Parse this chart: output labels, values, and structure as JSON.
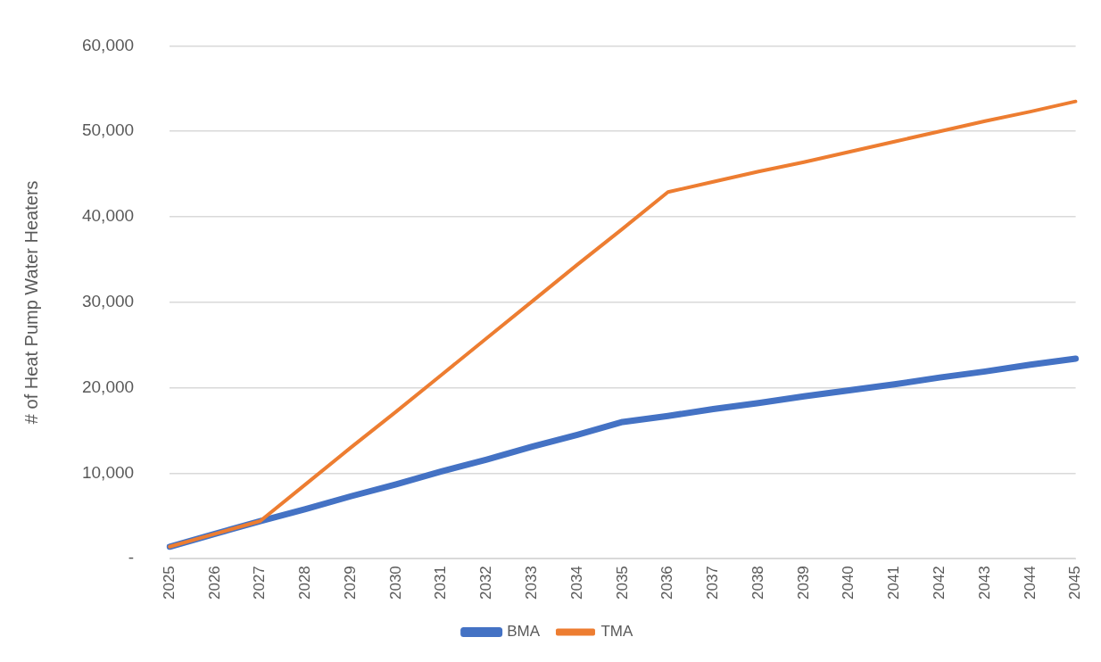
{
  "chart_data": {
    "type": "line",
    "ylabel": "# of Heat Pump Water Heaters",
    "categories": [
      "2025",
      "2026",
      "2027",
      "2028",
      "2029",
      "2030",
      "2031",
      "2032",
      "2033",
      "2034",
      "2035",
      "2036",
      "2037",
      "2038",
      "2039",
      "2040",
      "2041",
      "2042",
      "2043",
      "2044",
      "2045"
    ],
    "series": [
      {
        "name": "BMA",
        "color": "#4472c4",
        "values": [
          1400,
          2900,
          4400,
          5800,
          7300,
          8700,
          10200,
          11600,
          13100,
          14500,
          16000,
          16700,
          17500,
          18200,
          19000,
          19700,
          20400,
          21200,
          21900,
          22700,
          23400
        ]
      },
      {
        "name": "TMA",
        "color": "#ed7d31",
        "values": [
          1400,
          2900,
          4400,
          8700,
          13000,
          17200,
          21500,
          25800,
          30100,
          34400,
          38600,
          42900,
          44100,
          45300,
          46400,
          47600,
          48800,
          50000,
          51200,
          52300,
          53500
        ]
      }
    ],
    "ylim": [
      0,
      60000
    ],
    "yticks": [
      {
        "value": 0,
        "label": "-"
      },
      {
        "value": 10000,
        "label": "10,000"
      },
      {
        "value": 20000,
        "label": "20,000"
      },
      {
        "value": 30000,
        "label": "30,000"
      },
      {
        "value": 40000,
        "label": "40,000"
      },
      {
        "value": 50000,
        "label": "50,000"
      },
      {
        "value": 60000,
        "label": "60,000"
      }
    ],
    "grid": "y",
    "legend": "bottom",
    "marker": "none",
    "line_style": "solid"
  }
}
